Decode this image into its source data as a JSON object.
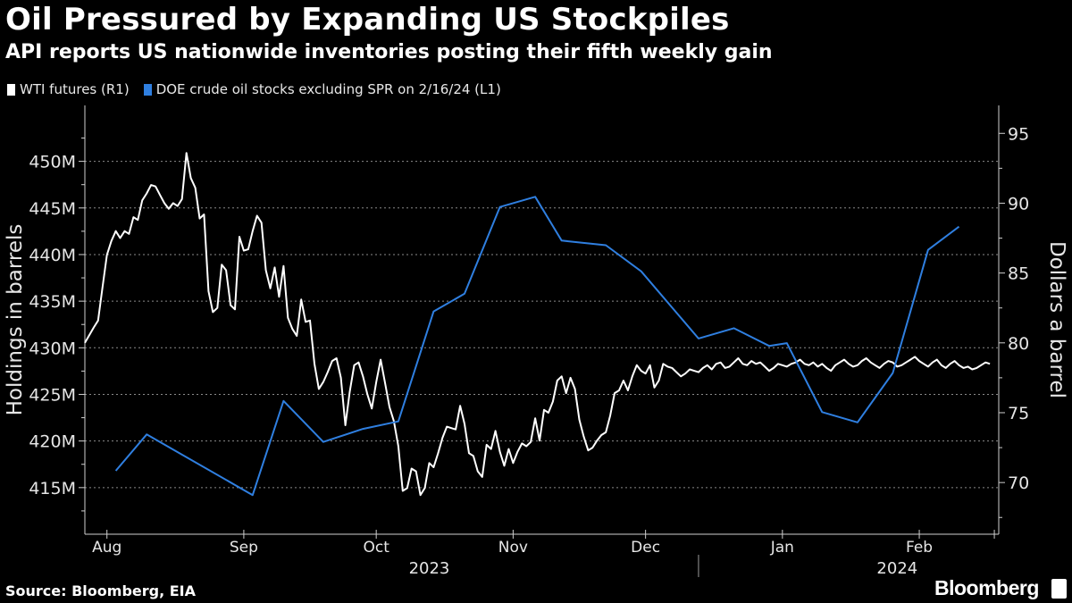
{
  "title": "Oil Pressured by Expanding US Stockpiles",
  "subtitle": "API reports US nationwide inventories posting their fifth weekly gain",
  "source": "Source: Bloomberg, EIA",
  "brand": "Bloomberg",
  "colors": {
    "background": "#000000",
    "wti": "#ffffff",
    "doe": "#2f7fe0",
    "grid": "#8a8a8a"
  },
  "legend": [
    {
      "label": "WTI futures (R1)",
      "color": "#ffffff"
    },
    {
      "label": "DOE crude oil stocks excluding SPR on 2/16/24 (L1)",
      "color": "#2f7fe0"
    }
  ],
  "chart_data": {
    "type": "line",
    "x_label": "",
    "left_axis": {
      "label": "Holdings in barrels",
      "range": [
        410,
        456
      ],
      "ticks": [
        415,
        420,
        425,
        430,
        435,
        440,
        445,
        450
      ],
      "tick_labels": [
        "415M",
        "420M",
        "425M",
        "430M",
        "435M",
        "440M",
        "445M",
        "450M"
      ]
    },
    "right_axis": {
      "label": "Dollars a barrel",
      "range": [
        66.3,
        97.0
      ],
      "ticks": [
        70,
        75,
        80,
        85,
        90,
        95
      ],
      "tick_labels": [
        "70",
        "75",
        "80",
        "85",
        "90",
        "95"
      ]
    },
    "x_range": [
      0,
      207
    ],
    "months": [
      {
        "label": "Aug",
        "pos": 5
      },
      {
        "label": "Sep",
        "pos": 36
      },
      {
        "label": "Oct",
        "pos": 66
      },
      {
        "label": "Nov",
        "pos": 97
      },
      {
        "label": "Dec",
        "pos": 127
      },
      {
        "label": "Jan",
        "pos": 158
      },
      {
        "label": "Feb",
        "pos": 189
      }
    ],
    "month_dividers": [
      5,
      36,
      66,
      97,
      127,
      158,
      189,
      206
    ],
    "years": [
      {
        "label": "2023",
        "pos": 78
      },
      {
        "label": "2024",
        "pos": 184
      }
    ],
    "year_divider": 139,
    "series": [
      {
        "name": "WTI futures (R1)",
        "axis": "right",
        "x": [
          0,
          2,
          3,
          4,
          5,
          6,
          7,
          8,
          9,
          10,
          11,
          12,
          13,
          14,
          15,
          16,
          17,
          18,
          19,
          20,
          21,
          22,
          23,
          24,
          25,
          26,
          27,
          28,
          29,
          30,
          31,
          32,
          33,
          34,
          35,
          36,
          37,
          38,
          39,
          40,
          41,
          42,
          43,
          44,
          45,
          46,
          47,
          48,
          49,
          50,
          51,
          52,
          53,
          54,
          55,
          56,
          57,
          58,
          59,
          60,
          61,
          62,
          63,
          64,
          65,
          66,
          67,
          68,
          69,
          70,
          71,
          72,
          73,
          74,
          75,
          76,
          77,
          78,
          79,
          80,
          81,
          82,
          83,
          84,
          85,
          86,
          87,
          88,
          89,
          90,
          91,
          92,
          93,
          94,
          95,
          96,
          97,
          98,
          99,
          100,
          101,
          102,
          103,
          104,
          105,
          106,
          107,
          108,
          109,
          110,
          111,
          112,
          113,
          114,
          115,
          116,
          117,
          118,
          119,
          120,
          121,
          122,
          123,
          124,
          125,
          126,
          127,
          128,
          129,
          130,
          131,
          132,
          133,
          134,
          135,
          136,
          137,
          138,
          139,
          140,
          141,
          142,
          143,
          144,
          145,
          146,
          147,
          148,
          149,
          150,
          151,
          152,
          153,
          154,
          155,
          156,
          157,
          158,
          159,
          160,
          161,
          162,
          163,
          164,
          165,
          166,
          167,
          168,
          169,
          170,
          171,
          172,
          173,
          174,
          175,
          176,
          177,
          178,
          179,
          180,
          181,
          182,
          183,
          184,
          185,
          186,
          187,
          188,
          189,
          190,
          191,
          192,
          193,
          194,
          195,
          196,
          197,
          198,
          199,
          200,
          201,
          202,
          203,
          204,
          205
        ],
        "values": [
          80.0,
          81.1,
          81.6,
          84.0,
          86.3,
          87.3,
          88.0,
          87.5,
          88.0,
          87.8,
          89.0,
          88.8,
          90.2,
          90.7,
          91.3,
          91.2,
          90.6,
          90.0,
          89.6,
          90.0,
          89.8,
          90.3,
          93.6,
          91.8,
          91.1,
          88.9,
          89.2,
          83.7,
          82.2,
          82.5,
          85.6,
          85.2,
          82.7,
          82.4,
          87.6,
          86.6,
          86.7,
          88.0,
          89.1,
          88.6,
          85.2,
          83.9,
          85.4,
          83.3,
          85.5,
          81.8,
          81.0,
          80.5,
          83.1,
          81.5,
          81.6,
          78.5,
          76.7,
          77.2,
          77.9,
          78.7,
          78.9,
          77.5,
          74.1,
          76.5,
          78.4,
          78.6,
          77.6,
          76.3,
          75.3,
          77.2,
          78.8,
          77.1,
          75.4,
          74.4,
          72.6,
          69.4,
          69.6,
          71.0,
          70.8,
          69.1,
          69.6,
          71.4,
          71.1,
          72.1,
          73.2,
          74.0,
          73.9,
          73.8,
          75.5,
          74.2,
          72.1,
          71.9,
          70.8,
          70.4,
          72.7,
          72.4,
          73.7,
          72.2,
          71.2,
          72.4,
          71.4,
          72.2,
          72.8,
          72.6,
          72.9,
          74.6,
          73.0,
          75.2,
          75.0,
          75.8,
          77.3,
          77.6,
          76.4,
          77.5,
          76.7,
          74.5,
          73.3,
          72.3,
          72.5,
          73.0,
          73.4,
          73.6,
          74.8,
          76.4,
          76.6,
          77.3,
          76.6,
          77.6,
          78.4,
          78.0,
          77.8,
          78.4,
          76.8,
          77.3,
          78.5,
          78.3,
          78.2,
          77.9,
          77.6,
          77.8,
          78.1,
          78.0,
          77.9,
          78.2,
          78.4,
          78.1,
          78.5,
          78.6,
          78.2,
          78.3,
          78.6,
          78.9,
          78.5,
          78.4,
          78.7,
          78.5,
          78.6,
          78.3,
          78.0,
          78.2,
          78.5,
          78.4,
          78.3,
          78.5,
          78.6,
          78.8,
          78.5,
          78.4,
          78.6,
          78.3,
          78.5,
          78.2,
          78.0,
          78.4,
          78.6,
          78.8,
          78.5,
          78.3,
          78.4,
          78.7,
          78.9,
          78.6,
          78.4,
          78.2,
          78.5,
          78.7,
          78.6,
          78.3,
          78.4,
          78.6,
          78.8,
          79.0,
          78.7,
          78.5,
          78.3,
          78.6,
          78.8,
          78.4,
          78.2,
          78.5,
          78.7,
          78.4,
          78.2,
          78.3,
          78.1,
          78.2,
          78.4,
          78.6,
          78.5
        ]
      },
      {
        "name": "DOE crude oil stocks excluding SPR on 2/16/24 (L1)",
        "axis": "left",
        "x": [
          7,
          14,
          38,
          45,
          54,
          63,
          71,
          79,
          86,
          94,
          102,
          108,
          118,
          126,
          139,
          147,
          155,
          159,
          167,
          175,
          183,
          191,
          198
        ],
        "values": [
          416.8,
          420.7,
          414.2,
          424.3,
          419.9,
          421.3,
          422.1,
          433.9,
          435.8,
          445.1,
          446.2,
          441.5,
          441.0,
          438.2,
          431.0,
          432.1,
          430.2,
          430.5,
          423.1,
          422.0,
          427.3,
          440.5,
          443.0
        ]
      }
    ]
  }
}
